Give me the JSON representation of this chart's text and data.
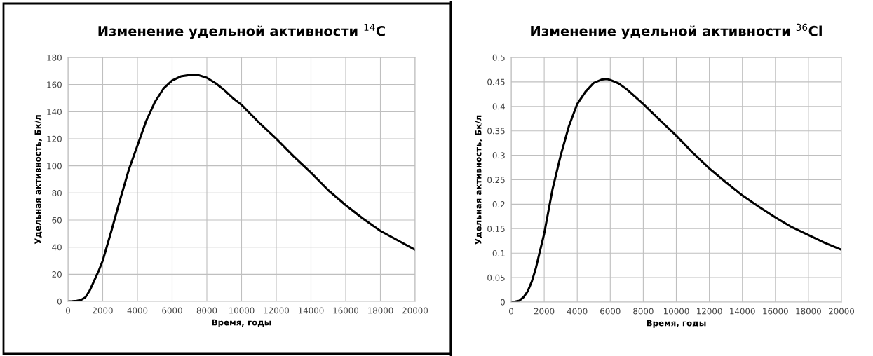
{
  "chart_data": [
    {
      "type": "line",
      "title": "Изменение удельной активности $^{14}$C",
      "xlabel": "Время, годы",
      "ylabel": "Удельная активность, Бк/л",
      "x": [
        0,
        250,
        500,
        750,
        1000,
        1250,
        1500,
        1750,
        2000,
        2500,
        3000,
        3500,
        4000,
        4500,
        5000,
        5500,
        6000,
        6500,
        7000,
        7500,
        8000,
        8500,
        9000,
        9500,
        10000,
        11000,
        12000,
        13000,
        14000,
        15000,
        16000,
        17000,
        18000,
        19000,
        20000
      ],
      "series": [
        {
          "color": "#000000",
          "values": [
            0,
            0.1,
            0.4,
            1,
            3,
            8,
            15,
            22,
            30,
            52,
            75,
            97,
            115,
            133,
            147,
            157,
            163,
            166,
            167,
            167,
            165,
            161,
            156,
            150,
            145,
            132,
            120,
            107,
            95,
            82,
            71,
            61,
            52,
            45,
            38
          ]
        }
      ],
      "xlim": [
        0,
        20000
      ],
      "xticks": [
        0,
        2000,
        4000,
        6000,
        8000,
        10000,
        12000,
        14000,
        16000,
        18000,
        20000
      ],
      "ylim": [
        0,
        180
      ],
      "yticks": [
        0,
        20,
        40,
        60,
        80,
        100,
        120,
        140,
        160,
        180
      ],
      "grid": true,
      "marker": "none",
      "line_style": "solid",
      "legend": false
    },
    {
      "type": "line",
      "title": "Изменение удельной активности $^{36}$Cl",
      "xlabel": "Время, годы",
      "ylabel": "Удельная активность, Бк/л",
      "x": [
        0,
        250,
        500,
        750,
        1000,
        1250,
        1500,
        1750,
        2000,
        2500,
        3000,
        3500,
        4000,
        4500,
        5000,
        5500,
        5800,
        6000,
        6500,
        7000,
        8000,
        9000,
        10000,
        11000,
        12000,
        13000,
        14000,
        15000,
        16000,
        17000,
        18000,
        19000,
        20000
      ],
      "series": [
        {
          "color": "#000000",
          "values": [
            0,
            0.001,
            0.003,
            0.01,
            0.022,
            0.042,
            0.07,
            0.105,
            0.14,
            0.23,
            0.3,
            0.36,
            0.405,
            0.43,
            0.448,
            0.455,
            0.456,
            0.454,
            0.447,
            0.435,
            0.405,
            0.372,
            0.34,
            0.305,
            0.273,
            0.245,
            0.218,
            0.195,
            0.173,
            0.153,
            0.137,
            0.121,
            0.107
          ]
        }
      ],
      "xlim": [
        0,
        20000
      ],
      "xticks": [
        0,
        2000,
        4000,
        6000,
        8000,
        10000,
        12000,
        14000,
        16000,
        18000,
        20000
      ],
      "ylim": [
        0,
        0.5
      ],
      "yticks": [
        0,
        0.05,
        0.1,
        0.15,
        0.2,
        0.25,
        0.3,
        0.35,
        0.4,
        0.45,
        0.5
      ],
      "grid": true,
      "marker": "none",
      "line_style": "solid",
      "legend": false
    }
  ]
}
